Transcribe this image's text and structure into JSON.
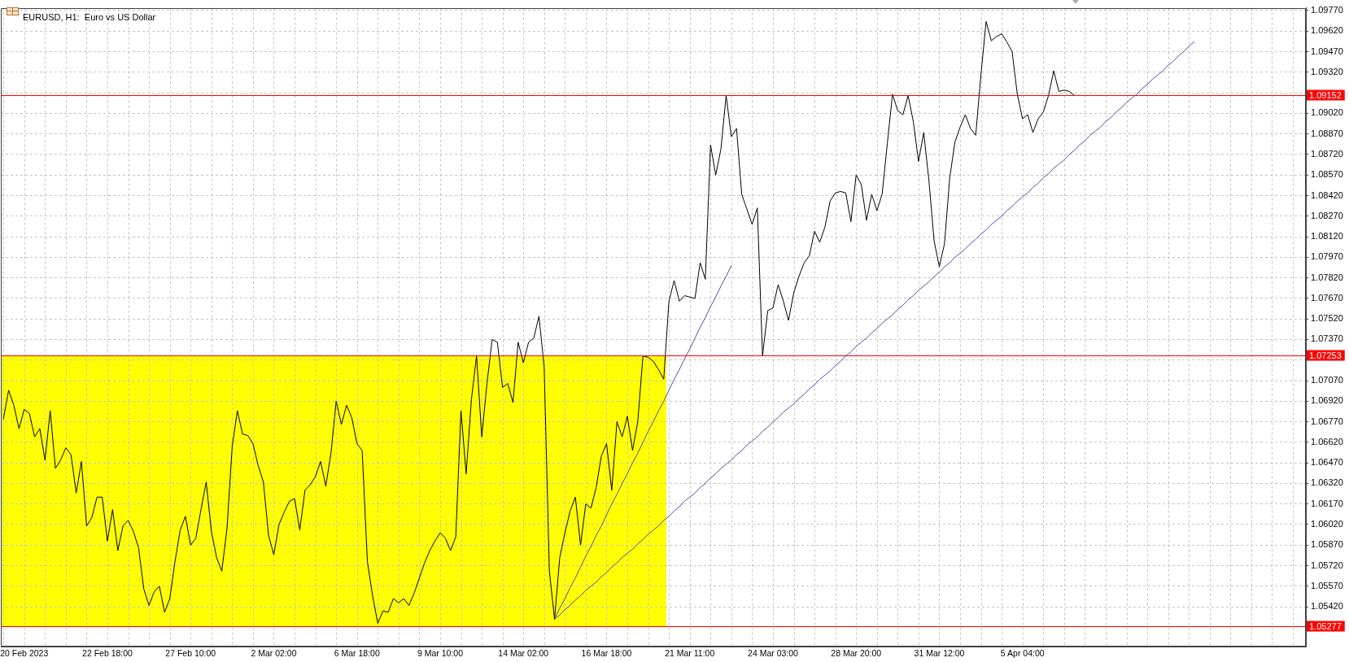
{
  "chart_data": {
    "type": "line",
    "title": "EURUSD, H1:  Euro vs US Dollar",
    "categories": [
      null,
      null,
      null,
      null,
      "20 Feb 2023",
      null,
      null,
      null,
      null,
      null,
      null,
      null,
      null,
      null,
      null,
      null,
      null,
      null,
      null,
      null,
      "22 Feb 18:00",
      null,
      null,
      null,
      null,
      null,
      null,
      null,
      null,
      null,
      null,
      null,
      null,
      null,
      null,
      null,
      "27 Feb 10:00",
      null,
      null,
      null,
      null,
      null,
      null,
      null,
      null,
      null,
      null,
      null,
      null,
      null,
      null,
      null,
      "2 Mar 02:00",
      null,
      null,
      null,
      null,
      null,
      null,
      null,
      null,
      null,
      null,
      null,
      null,
      null,
      null,
      null,
      "6 Mar 18:00",
      null,
      null,
      null,
      null,
      null,
      null,
      null,
      null,
      null,
      null,
      null,
      null,
      null,
      null,
      null,
      "9 Mar 10:00",
      null,
      null,
      null,
      null,
      null,
      null,
      null,
      null,
      null,
      null,
      null,
      null,
      null,
      null,
      null,
      "14 Mar 02:00",
      null,
      null,
      null,
      null,
      null,
      null,
      null,
      null,
      null,
      null,
      null,
      null,
      null,
      null,
      null,
      "16 Mar 18:00",
      null,
      null,
      null,
      null,
      null,
      null,
      null,
      null,
      null,
      null,
      null,
      null,
      null,
      null,
      null,
      "21 Mar 11:00",
      null,
      null,
      null,
      null,
      null,
      null,
      null,
      null,
      null,
      null,
      null,
      null,
      null,
      null,
      null,
      "24 Mar 03:00",
      null,
      null,
      null,
      null,
      null,
      null,
      null,
      null,
      null,
      null,
      null,
      null,
      null,
      null,
      null,
      "28 Mar 20:00",
      null,
      null,
      null,
      null,
      null,
      null,
      null,
      null,
      null,
      null,
      null,
      null,
      null,
      null,
      null,
      "31 Mar 12:00",
      null,
      null,
      null,
      null,
      null,
      null,
      null,
      null,
      null,
      null,
      null,
      null,
      null,
      null,
      null,
      "5 Apr 04:00",
      null,
      null,
      null,
      null,
      null,
      null,
      null,
      null,
      null,
      null,
      null,
      null,
      null,
      null,
      null,
      null,
      null,
      null,
      null,
      null,
      null,
      null,
      null,
      null,
      null,
      null,
      null,
      null,
      null,
      null,
      null,
      null,
      null,
      null,
      null,
      null,
      null,
      null,
      null,
      null,
      null,
      null,
      null,
      null,
      null,
      null,
      null,
      null,
      null,
      null,
      null,
      null,
      null,
      null
    ],
    "ylim": [
      1.0513,
      1.0979
    ],
    "yticks": [
      {
        "value": 1.0542,
        "label": "1.05420"
      },
      {
        "value": 1.0557,
        "label": "1.05570"
      },
      {
        "value": 1.0572,
        "label": "1.05720"
      },
      {
        "value": 1.0587,
        "label": "1.05870"
      },
      {
        "value": 1.0602,
        "label": "1.06020"
      },
      {
        "value": 1.0617,
        "label": "1.06170"
      },
      {
        "value": 1.0632,
        "label": "1.06320"
      },
      {
        "value": 1.0647,
        "label": "1.06470"
      },
      {
        "value": 1.0662,
        "label": "1.06620"
      },
      {
        "value": 1.0677,
        "label": "1.06770"
      },
      {
        "value": 1.0692,
        "label": "1.06920"
      },
      {
        "value": 1.0707,
        "label": "1.07070"
      },
      {
        "value": 1.0722,
        "label": null
      },
      {
        "value": 1.0737,
        "label": "1.07370"
      },
      {
        "value": 1.0752,
        "label": "1.07520"
      },
      {
        "value": 1.0767,
        "label": "1.07670"
      },
      {
        "value": 1.0782,
        "label": "1.07820"
      },
      {
        "value": 1.0797,
        "label": "1.07970"
      },
      {
        "value": 1.0812,
        "label": "1.08120"
      },
      {
        "value": 1.0827,
        "label": "1.08270"
      },
      {
        "value": 1.0842,
        "label": "1.08420"
      },
      {
        "value": 1.0857,
        "label": "1.08570"
      },
      {
        "value": 1.0872,
        "label": "1.08720"
      },
      {
        "value": 1.0887,
        "label": "1.08870"
      },
      {
        "value": 1.0902,
        "label": "1.09020"
      },
      {
        "value": 1.0917,
        "label": null
      },
      {
        "value": 1.0932,
        "label": "1.09320"
      },
      {
        "value": 1.0947,
        "label": "1.09470"
      },
      {
        "value": 1.0962,
        "label": "1.09620"
      },
      {
        "value": 1.0977,
        "label": "1.09770"
      }
    ],
    "grid": true,
    "ref_lines": [
      {
        "axis": "y",
        "value": 1.09152,
        "label": "1.09152",
        "color": "#ff0000"
      },
      {
        "axis": "y",
        "value": 1.07253,
        "label": "1.07253",
        "color": "#ff0000"
      },
      {
        "axis": "y",
        "value": 1.05277,
        "label": "1.05277",
        "color": "#ff0000"
      }
    ],
    "series": [
      {
        "color": "#ffff00",
        "values": [
          null,
          null,
          null,
          null,
          null,
          null,
          null,
          null,
          null,
          null,
          null,
          null,
          null,
          null,
          null,
          null,
          null,
          null,
          null,
          null,
          null,
          null,
          null,
          null,
          null,
          null,
          null,
          null,
          null,
          null,
          null,
          null,
          null,
          null,
          null,
          null,
          null,
          null,
          null,
          null,
          null,
          null,
          null,
          null,
          null,
          null,
          null,
          null,
          null,
          null,
          null,
          null,
          null,
          null,
          null,
          null,
          null,
          null,
          null,
          null,
          null,
          null,
          null,
          null,
          null,
          null,
          null,
          null,
          null,
          null,
          null,
          null,
          null,
          null,
          null,
          null,
          null,
          null,
          null,
          null,
          null,
          null,
          null,
          null,
          null,
          null,
          null,
          null,
          null,
          null,
          null,
          null,
          null,
          null,
          null,
          null,
          null,
          null,
          null,
          null,
          null,
          null,
          null,
          null,
          null,
          null,
          null,
          null,
          null,
          null,
          null,
          null,
          null,
          null,
          null,
          null,
          null,
          null,
          null,
          null,
          null,
          null,
          null,
          null,
          null,
          null,
          null,
          null,
          null,
          null,
          null,
          null,
          null,
          null,
          null,
          null,
          null,
          null,
          null,
          null,
          null,
          null,
          null,
          null,
          null,
          null,
          null,
          null,
          null,
          null,
          null,
          null,
          null,
          null,
          null,
          null,
          null,
          null,
          null,
          null,
          null,
          null,
          null,
          null,
          null,
          null,
          null,
          null,
          null,
          null,
          null,
          null,
          null,
          null,
          null,
          null,
          null,
          null,
          null,
          null,
          null,
          null,
          null,
          null,
          null,
          null,
          null,
          null,
          null,
          null,
          null,
          null,
          null,
          null,
          null,
          null,
          null,
          null,
          null,
          null,
          null,
          null,
          null,
          null,
          null,
          null,
          null,
          null,
          null,
          null,
          null,
          null,
          null,
          null,
          null,
          null,
          null,
          null,
          null,
          null,
          null,
          null,
          null,
          null,
          null,
          null,
          null,
          null,
          null,
          null,
          null,
          null,
          null,
          null,
          null,
          null,
          null,
          null,
          null,
          null,
          null,
          null,
          null,
          null,
          null,
          null,
          null,
          null,
          null,
          null,
          null
        ],
        "lower": [
          1.05277,
          1.05277,
          1.05277,
          1.05277,
          1.05277,
          1.05277,
          1.05277,
          1.05277,
          1.05277,
          1.05277,
          1.05277,
          1.05277,
          1.05277,
          1.05277,
          1.05277,
          1.05277,
          1.05277,
          1.05277,
          1.05277,
          1.05277,
          1.05277,
          1.05277,
          1.05277,
          1.05277,
          1.05277,
          1.05277,
          1.05277,
          1.05277,
          1.05277,
          1.05277,
          1.05277,
          1.05277,
          1.05277,
          1.05277,
          1.05277,
          1.05277,
          1.05277,
          1.05277,
          1.05277,
          1.05277,
          1.05277,
          1.05277,
          1.05277,
          1.05277,
          1.05277,
          1.05277,
          1.05277,
          1.05277,
          1.05277,
          1.05277,
          1.05277,
          1.05277,
          1.05277,
          1.05277,
          1.05277,
          1.05277,
          1.05277,
          1.05277,
          1.05277,
          1.05277,
          1.05277,
          1.05277,
          1.05277,
          1.05277,
          1.05277,
          1.05277,
          1.05277,
          1.05277,
          1.05277,
          1.05277,
          1.05277,
          1.05277,
          1.05277,
          1.05277,
          1.05277,
          1.05277,
          1.05277,
          1.05277,
          1.05277,
          1.05277,
          1.05277,
          1.05277,
          1.05277,
          1.05277,
          1.05277,
          1.05277,
          1.05277,
          1.05277,
          1.05277,
          1.05277,
          1.05277,
          1.05277,
          1.05277,
          1.05277,
          1.05277,
          1.05277,
          1.05277,
          1.05277,
          1.05277,
          1.05277,
          1.05277,
          1.05277,
          1.05277,
          1.05277,
          1.05277,
          1.05277,
          1.05277,
          1.05277,
          1.05277,
          1.05277,
          1.05277,
          1.05277,
          1.05277,
          1.05277,
          1.05277,
          1.05277,
          1.05277,
          1.05277,
          1.05277,
          1.05277,
          1.05277,
          1.05277,
          1.05277,
          1.05277,
          1.05277,
          1.05277,
          1.05277,
          1.05277,
          null,
          null,
          null,
          null,
          null,
          null,
          null,
          null,
          null,
          null,
          null,
          null,
          null,
          null,
          null,
          null,
          null,
          null,
          null,
          null,
          null,
          null,
          null,
          null,
          null,
          null,
          null,
          null,
          null,
          null,
          null,
          null,
          null,
          null,
          null,
          null,
          null,
          null,
          null,
          null,
          null,
          null,
          null,
          null,
          null,
          null,
          null,
          null,
          null,
          null,
          null,
          null,
          null,
          null,
          null,
          null,
          null,
          null,
          null,
          null,
          null,
          null,
          null,
          null,
          null,
          null,
          null,
          null,
          null,
          null,
          null,
          null,
          null,
          null,
          null,
          null,
          null,
          null,
          null,
          null,
          null,
          null,
          null,
          null,
          null,
          null,
          null,
          null,
          null,
          null,
          null,
          null,
          null,
          null,
          null,
          null,
          null,
          null,
          null,
          null,
          null,
          null,
          null,
          null,
          null,
          null,
          null,
          null,
          null,
          null,
          null,
          null,
          null,
          null,
          null,
          null,
          null,
          null,
          null,
          null,
          null,
          null,
          null
        ],
        "upper": [
          1.07253,
          1.07253,
          1.07253,
          1.07253,
          1.07253,
          1.07253,
          1.07253,
          1.07253,
          1.07253,
          1.07253,
          1.07253,
          1.07253,
          1.07253,
          1.07253,
          1.07253,
          1.07253,
          1.07253,
          1.07253,
          1.07253,
          1.07253,
          1.07253,
          1.07253,
          1.07253,
          1.07253,
          1.07253,
          1.07253,
          1.07253,
          1.07253,
          1.07253,
          1.07253,
          1.07253,
          1.07253,
          1.07253,
          1.07253,
          1.07253,
          1.07253,
          1.07253,
          1.07253,
          1.07253,
          1.07253,
          1.07253,
          1.07253,
          1.07253,
          1.07253,
          1.07253,
          1.07253,
          1.07253,
          1.07253,
          1.07253,
          1.07253,
          1.07253,
          1.07253,
          1.07253,
          1.07253,
          1.07253,
          1.07253,
          1.07253,
          1.07253,
          1.07253,
          1.07253,
          1.07253,
          1.07253,
          1.07253,
          1.07253,
          1.07253,
          1.07253,
          1.07253,
          1.07253,
          1.07253,
          1.07253,
          1.07253,
          1.07253,
          1.07253,
          1.07253,
          1.07253,
          1.07253,
          1.07253,
          1.07253,
          1.07253,
          1.07253,
          1.07253,
          1.07253,
          1.07253,
          1.07253,
          1.07253,
          1.07253,
          1.07253,
          1.07253,
          1.07253,
          1.07253,
          1.07253,
          1.07253,
          1.07253,
          1.07253,
          1.07253,
          1.07253,
          1.07253,
          1.07253,
          1.07253,
          1.07253,
          1.07253,
          1.07253,
          1.07253,
          1.07253,
          1.07253,
          1.07253,
          1.07253,
          1.07253,
          1.07253,
          1.07253,
          1.07253,
          1.07253,
          1.07253,
          1.07253,
          1.07253,
          1.07253,
          1.07253,
          1.07253,
          1.07253,
          1.07253,
          1.07253,
          1.07253,
          1.07253,
          1.07253,
          1.07253,
          1.07253,
          1.07253,
          1.07253,
          null,
          null,
          null,
          null,
          null,
          null,
          null,
          null,
          null,
          null,
          null,
          null,
          null,
          null,
          null,
          null,
          null,
          null,
          null,
          null,
          null,
          null,
          null,
          null,
          null,
          null,
          null,
          null,
          null,
          null,
          null,
          null,
          null,
          null,
          null,
          null,
          null,
          null,
          null,
          null,
          null,
          null,
          null,
          null,
          null,
          null,
          null,
          null,
          null,
          null,
          null,
          null,
          null,
          null,
          null,
          null,
          null,
          null,
          null,
          null,
          null,
          null,
          null,
          null,
          null,
          null,
          null,
          null,
          null,
          null,
          null,
          null,
          null,
          null,
          null,
          null,
          null,
          null,
          null,
          null,
          null,
          null,
          null,
          null,
          null,
          null,
          null,
          null,
          null,
          null,
          null,
          null,
          null,
          null,
          null,
          null,
          null,
          null,
          null,
          null,
          null,
          null,
          null,
          null,
          null,
          null,
          null,
          null,
          null,
          null,
          null,
          null,
          null,
          null,
          null,
          null,
          null,
          null,
          null,
          null,
          null,
          null,
          null
        ]
      },
      {
        "color": "#000000",
        "values": [
          1.0679,
          1.07,
          1.0689,
          1.0672,
          1.0686,
          1.0683,
          1.0666,
          1.0672,
          1.0649,
          1.0685,
          1.0643,
          1.0649,
          1.0658,
          1.0653,
          1.0625,
          1.0648,
          1.0601,
          1.0607,
          1.0622,
          1.0622,
          1.059,
          1.0613,
          1.0583,
          1.0601,
          1.0605,
          1.0597,
          1.0585,
          1.0555,
          1.0543,
          1.0553,
          1.0557,
          1.0538,
          1.0548,
          1.0575,
          1.0598,
          1.0608,
          1.0587,
          1.0592,
          1.0613,
          1.0633,
          1.0597,
          1.0578,
          1.0568,
          1.0599,
          1.0659,
          1.0685,
          1.0668,
          1.0667,
          1.0661,
          1.0645,
          1.0633,
          1.0594,
          1.058,
          1.0602,
          1.0611,
          1.0619,
          1.0621,
          1.0598,
          1.0627,
          1.0631,
          1.0637,
          1.0648,
          1.063,
          1.0654,
          1.0692,
          1.0675,
          1.0689,
          1.068,
          1.0661,
          1.0656,
          1.0575,
          1.055,
          1.053,
          1.0539,
          1.0538,
          1.0548,
          1.0545,
          1.0548,
          1.0543,
          1.0552,
          1.0563,
          1.0574,
          1.0583,
          1.059,
          1.0596,
          1.0592,
          1.0583,
          1.0593,
          1.0685,
          1.0639,
          1.0693,
          1.0725,
          1.0666,
          1.0705,
          1.0737,
          1.0735,
          1.0702,
          1.0705,
          1.0691,
          1.0735,
          1.072,
          1.0735,
          1.0738,
          1.0754,
          1.0717,
          1.0568,
          1.0533,
          1.0578,
          1.0596,
          1.0612,
          1.0622,
          1.0587,
          1.0617,
          1.0614,
          1.0629,
          1.0652,
          1.0661,
          1.0627,
          1.0677,
          1.0666,
          1.0681,
          1.0656,
          1.0677,
          1.0725,
          1.0724,
          1.0721,
          1.0715,
          1.0708,
          1.0765,
          1.078,
          1.0765,
          1.0769,
          1.0768,
          1.0767,
          1.0793,
          1.0781,
          1.0879,
          1.0857,
          1.0876,
          1.0915,
          1.0885,
          1.0891,
          1.0843,
          1.0832,
          1.0821,
          1.0833,
          1.0725,
          1.0758,
          1.076,
          1.0777,
          1.0765,
          1.0751,
          1.0771,
          1.0783,
          1.0793,
          1.0798,
          1.0816,
          1.0808,
          1.0819,
          1.0838,
          1.0844,
          1.0845,
          1.0844,
          1.0823,
          1.0857,
          1.085,
          1.0824,
          1.0843,
          1.0831,
          1.0843,
          1.088,
          1.0916,
          1.0904,
          1.0901,
          1.0915,
          1.0896,
          1.0867,
          1.0888,
          1.0853,
          1.0809,
          1.079,
          1.0807,
          1.0855,
          1.0881,
          1.0892,
          1.0901,
          1.0891,
          1.0886,
          1.093,
          1.0969,
          1.0955,
          1.0958,
          1.096,
          1.0954,
          1.0947,
          1.0916,
          1.0898,
          1.0901,
          1.0888,
          1.0898,
          1.0903,
          1.0915,
          1.0933,
          1.0918,
          1.0919,
          1.0918,
          1.0915,
          null,
          null,
          null,
          null,
          null,
          null,
          null,
          null,
          null,
          null,
          null,
          null,
          null,
          null,
          null,
          null,
          null,
          null,
          null,
          null,
          null,
          null,
          null,
          null,
          null,
          null,
          null,
          null,
          null,
          null,
          null,
          null,
          null,
          null,
          null,
          null,
          null,
          null,
          null,
          null,
          null,
          null,
          null,
          null
        ]
      },
      {
        "color": "#5050a8",
        "values": [
          null,
          null,
          null,
          null,
          null,
          null,
          null,
          null,
          null,
          null,
          null,
          null,
          null,
          null,
          null,
          null,
          null,
          null,
          null,
          null,
          null,
          null,
          null,
          null,
          null,
          null,
          null,
          null,
          null,
          null,
          null,
          null,
          null,
          null,
          null,
          null,
          null,
          null,
          null,
          null,
          null,
          null,
          null,
          null,
          null,
          null,
          null,
          null,
          null,
          null,
          null,
          null,
          null,
          null,
          null,
          null,
          null,
          null,
          null,
          null,
          null,
          null,
          null,
          null,
          null,
          null,
          null,
          null,
          null,
          null,
          null,
          null,
          null,
          null,
          null,
          null,
          null,
          null,
          null,
          null,
          null,
          null,
          null,
          null,
          null,
          null,
          null,
          null,
          null,
          null,
          null,
          null,
          null,
          null,
          null,
          null,
          null,
          null,
          null,
          null,
          null,
          null,
          null,
          null,
          null,
          null,
          1.0533,
          1.0541,
          1.0548,
          1.0556,
          1.0563,
          1.0571,
          1.0579,
          1.0586,
          1.0594,
          1.0601,
          1.0609,
          1.0617,
          1.0624,
          1.0632,
          1.0639,
          1.0647,
          1.0654,
          1.0662,
          1.067,
          1.0677,
          1.0685,
          1.0692,
          1.07,
          1.0708,
          1.0715,
          1.0723,
          1.073,
          1.0738,
          1.0746,
          1.0753,
          1.0761,
          1.0768,
          1.0776,
          1.0783,
          1.0791,
          null,
          null,
          null,
          null,
          null,
          null,
          null,
          null,
          null,
          null,
          null,
          null,
          null,
          null,
          null,
          null,
          null,
          null,
          null,
          null,
          null,
          null,
          null,
          null,
          null,
          null,
          null,
          null,
          null,
          null,
          null,
          null,
          null,
          null,
          null,
          null,
          null,
          null,
          null,
          null,
          null,
          null,
          null,
          null,
          null,
          null,
          null,
          null,
          null,
          null,
          null,
          null,
          null,
          null,
          null,
          null,
          null,
          null,
          null,
          null,
          null,
          null,
          null,
          null,
          null,
          null,
          null,
          null,
          null,
          null,
          null,
          null,
          null,
          null,
          null,
          null,
          null,
          null,
          null,
          null,
          null,
          null,
          null,
          null,
          null,
          null,
          null,
          null,
          null,
          null,
          null,
          null,
          null,
          null,
          null,
          null,
          null,
          null,
          null,
          null,
          null,
          null,
          null,
          null,
          null,
          null,
          null,
          null,
          null,
          null
        ]
      },
      {
        "color": "#5050a8",
        "values": [
          null,
          null,
          null,
          null,
          null,
          null,
          null,
          null,
          null,
          null,
          null,
          null,
          null,
          null,
          null,
          null,
          null,
          null,
          null,
          null,
          null,
          null,
          null,
          null,
          null,
          null,
          null,
          null,
          null,
          null,
          null,
          null,
          null,
          null,
          null,
          null,
          null,
          null,
          null,
          null,
          null,
          null,
          null,
          null,
          null,
          null,
          null,
          null,
          null,
          null,
          null,
          null,
          null,
          null,
          null,
          null,
          null,
          null,
          null,
          null,
          null,
          null,
          null,
          null,
          null,
          null,
          null,
          null,
          null,
          null,
          null,
          null,
          null,
          null,
          null,
          null,
          null,
          null,
          null,
          null,
          null,
          null,
          null,
          null,
          null,
          null,
          null,
          null,
          null,
          null,
          null,
          null,
          null,
          null,
          null,
          null,
          null,
          null,
          null,
          null,
          null,
          null,
          null,
          null,
          null,
          null,
          1.0533,
          1.0536,
          1.054,
          1.0543,
          1.0547,
          1.055,
          1.0554,
          1.0557,
          1.056,
          1.0564,
          1.0567,
          1.0571,
          1.0574,
          1.0578,
          1.0581,
          1.0584,
          1.0588,
          1.0591,
          1.0595,
          1.0598,
          1.0601,
          1.0605,
          1.0608,
          1.0612,
          1.0615,
          1.0619,
          1.0622,
          1.0625,
          1.0629,
          1.0632,
          1.0636,
          1.0639,
          1.0643,
          1.0646,
          1.0649,
          1.0653,
          1.0656,
          1.066,
          1.0663,
          1.0666,
          1.067,
          1.0673,
          1.0677,
          1.068,
          1.0684,
          1.0687,
          1.069,
          1.0694,
          1.0697,
          1.0701,
          1.0704,
          1.0708,
          1.0711,
          1.0714,
          1.0718,
          1.0721,
          1.0725,
          1.0728,
          1.0732,
          1.0735,
          1.0738,
          1.0742,
          1.0745,
          1.0749,
          1.0752,
          1.0755,
          1.0759,
          1.0762,
          1.0766,
          1.0769,
          1.0773,
          1.0776,
          1.0779,
          1.0783,
          1.0786,
          1.079,
          1.0793,
          1.0797,
          1.08,
          1.0803,
          1.0807,
          1.081,
          1.0814,
          1.0817,
          1.0821,
          1.0824,
          1.0827,
          1.0831,
          1.0834,
          1.0838,
          1.0841,
          1.0844,
          1.0848,
          1.0851,
          1.0855,
          1.0858,
          1.0862,
          1.0865,
          1.0868,
          1.0872,
          1.0875,
          1.0879,
          1.0882,
          1.0886,
          1.0889,
          1.0892,
          1.0896,
          1.0899,
          1.0903,
          1.0906,
          1.091,
          1.0913,
          1.0916,
          1.092,
          1.0923,
          1.0927,
          1.093,
          1.0933,
          1.0937,
          1.094,
          1.0944,
          1.0947,
          1.0951,
          1.0954,
          null,
          null,
          null,
          null,
          null,
          null,
          null,
          null,
          null,
          null,
          null,
          null,
          null,
          null,
          null,
          null,
          null,
          null,
          null,
          null,
          null
        ]
      }
    ]
  }
}
